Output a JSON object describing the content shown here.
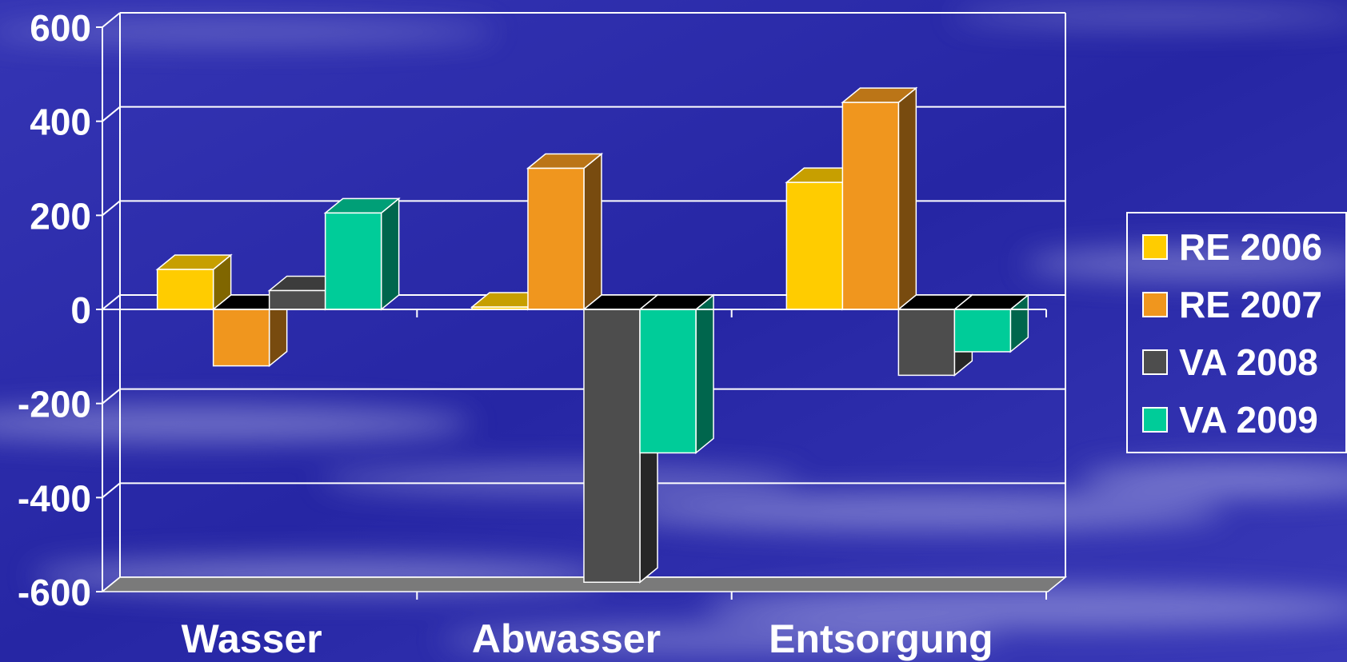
{
  "chart_data": {
    "type": "bar",
    "style": "3d-clustered-column",
    "categories": [
      "Wasser",
      "Abwasser",
      "Entsorgung"
    ],
    "series": [
      {
        "name": "RE 2006",
        "values": [
          85,
          5,
          270
        ],
        "color": "#ffcc00"
      },
      {
        "name": "RE 2007",
        "values": [
          -120,
          300,
          440
        ],
        "color": "#f0961e"
      },
      {
        "name": "VA 2008",
        "values": [
          40,
          -580,
          -140
        ],
        "color": "#4d4d4d"
      },
      {
        "name": "VA 2009",
        "values": [
          205,
          -305,
          -90
        ],
        "color": "#00cc99"
      }
    ],
    "ylim": [
      -600,
      600
    ],
    "yticks": [
      "600",
      "400",
      "200",
      "0",
      "-200",
      "-400",
      "-600"
    ],
    "grid": true,
    "legend_position": "right",
    "title": "",
    "xlabel": "",
    "ylabel": ""
  },
  "colors": {
    "background": "#2a2aa8",
    "text": "#ffffff",
    "gridline": "#ffffff",
    "floor": "#7a7a7a"
  }
}
